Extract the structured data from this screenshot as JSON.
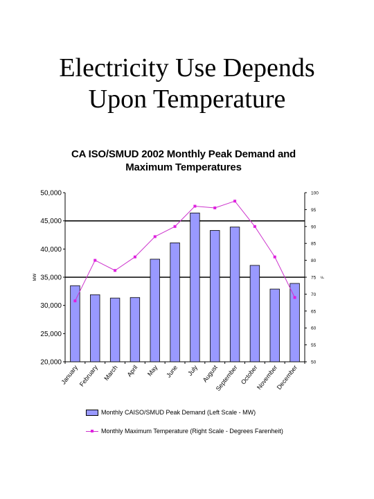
{
  "slide": {
    "title_line1": "Electricity Use Depends",
    "title_line2": "Upon Temperature"
  },
  "chart_data": {
    "type": "bar",
    "title_line1": "CA ISO/SMUD 2002 Monthly Peak Demand and",
    "title_line2": "Maximum Temperatures",
    "categories": [
      "January",
      "February",
      "March",
      "April",
      "May",
      "June",
      "July",
      "August",
      "September",
      "October",
      "November",
      "December"
    ],
    "y_left": {
      "label": "MW",
      "range": [
        20000,
        50000
      ],
      "ticks": [
        "20,000",
        "25,000",
        "30,000",
        "35,000",
        "40,000",
        "45,000",
        "50,000"
      ],
      "gridlines_at": [
        35000,
        45000
      ]
    },
    "y_right": {
      "label": "F",
      "range": [
        50,
        100
      ],
      "ticks": [
        "50",
        "55",
        "60",
        "65",
        "70",
        "75",
        "80",
        "85",
        "90",
        "95",
        "100"
      ]
    },
    "series": [
      {
        "name": "Monthly CAISO/SMUD Peak Demand (Left Scale - MW)",
        "kind": "bar",
        "axis": "left",
        "color": "#9999ff",
        "values": [
          33500,
          31900,
          31300,
          31400,
          38200,
          41100,
          46400,
          43300,
          43900,
          37100,
          32900,
          33900
        ]
      },
      {
        "name": "Monthly Maximum Temperature (Right Scale - Degrees Farenheit)",
        "kind": "line",
        "axis": "right",
        "color": "#cc33cc",
        "values": [
          68,
          80,
          77,
          81,
          87,
          90,
          96,
          95.5,
          97.5,
          90,
          81,
          69
        ]
      }
    ]
  }
}
